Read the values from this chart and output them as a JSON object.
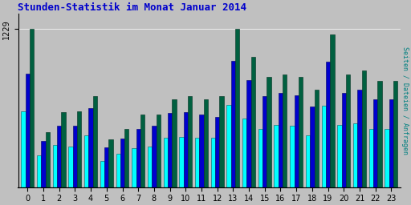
{
  "title": "Stunden-Statistik im Monat Januar 2014",
  "title_color": "#0000CC",
  "background_color": "#C0C0C0",
  "plot_bg_color": "#C0C0C0",
  "ylabel_right": "Seiten / Dateien / Anfragen",
  "ylabel_right_color": "#008080",
  "ytick_label": "1229",
  "hours": [
    0,
    1,
    2,
    3,
    4,
    5,
    6,
    7,
    8,
    9,
    10,
    11,
    12,
    13,
    14,
    15,
    16,
    17,
    18,
    19,
    20,
    21,
    22,
    23
  ],
  "seiten": [
    1229,
    430,
    580,
    590,
    710,
    370,
    450,
    565,
    565,
    685,
    705,
    685,
    705,
    1230,
    1010,
    855,
    875,
    855,
    755,
    1185,
    875,
    905,
    825,
    825
  ],
  "dateien": [
    880,
    360,
    475,
    475,
    615,
    310,
    375,
    455,
    475,
    575,
    585,
    565,
    545,
    980,
    835,
    705,
    735,
    715,
    625,
    975,
    735,
    755,
    685,
    685
  ],
  "anfragen": [
    590,
    245,
    325,
    315,
    405,
    205,
    258,
    300,
    315,
    385,
    390,
    385,
    385,
    640,
    535,
    455,
    485,
    475,
    405,
    635,
    485,
    495,
    450,
    450
  ],
  "bar_width": 0.27,
  "colors_order": [
    "#00FFFF",
    "#0000CD",
    "#006040"
  ],
  "ylim": [
    0,
    1350
  ],
  "figsize": [
    5.12,
    2.56
  ],
  "dpi": 100
}
